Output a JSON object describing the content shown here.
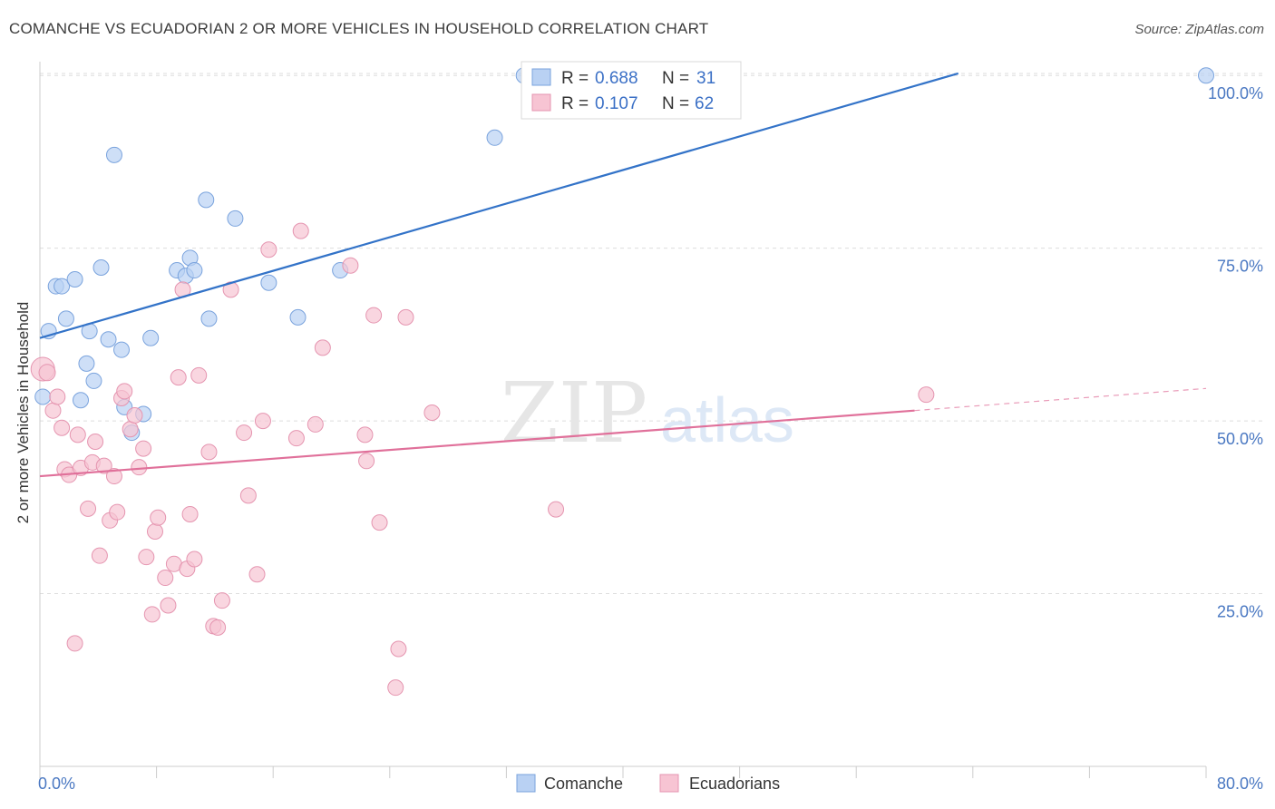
{
  "title": "COMANCHE VS ECUADORIAN 2 OR MORE VEHICLES IN HOUSEHOLD CORRELATION CHART",
  "source": "Source: ZipAtlas.com",
  "watermark": {
    "zip": "ZIP",
    "atlas": "atlas"
  },
  "legend_box": [
    {
      "r_label": "R =",
      "r_value": "0.688",
      "n_label": "N =",
      "n_value": "31",
      "color": "#6699dd"
    },
    {
      "r_label": "R =",
      "r_value": "0.107",
      "n_label": "N =",
      "n_value": "62",
      "color": "#e0779a"
    }
  ],
  "colors": {
    "comanche_fill": "#b9d1f3",
    "comanche_stroke": "#7aa3dd",
    "comanche_line": "#3373c8",
    "ecuador_fill": "#f7c4d3",
    "ecuador_stroke": "#e595b0",
    "ecuador_line": "#e0709a",
    "tick_text": "#4a78c2",
    "grid": "#dddddd"
  },
  "chart_data": {
    "type": "scatter",
    "title": "COMANCHE VS ECUADORIAN 2 OR MORE VEHICLES IN HOUSEHOLD CORRELATION CHART",
    "xlabel": "",
    "ylabel": "2 or more Vehicles in Household",
    "xlim": [
      0,
      80
    ],
    "ylim": [
      0,
      102
    ],
    "x_tick_labels": [
      "0.0%",
      "80.0%"
    ],
    "y_ticks": [
      25,
      50,
      75,
      100
    ],
    "y_tick_labels": [
      "25.0%",
      "50.0%",
      "75.0%",
      "100.0%"
    ],
    "grid": true,
    "legend_position": "bottom-center",
    "series": [
      {
        "name": "Comanche",
        "trend": {
          "x": [
            0,
            63
          ],
          "y": [
            62,
            100.3
          ]
        },
        "points": [
          [
            0.2,
            53.5
          ],
          [
            0.6,
            63
          ],
          [
            1.1,
            69.5
          ],
          [
            1.5,
            69.5
          ],
          [
            1.8,
            64.8
          ],
          [
            2.4,
            70.5
          ],
          [
            2.8,
            53
          ],
          [
            3.2,
            58.3
          ],
          [
            3.4,
            63
          ],
          [
            3.7,
            55.8
          ],
          [
            4.2,
            72.2
          ],
          [
            4.7,
            61.8
          ],
          [
            5.1,
            88.5
          ],
          [
            5.6,
            60.3
          ],
          [
            5.8,
            52
          ],
          [
            6.3,
            48.3
          ],
          [
            7.1,
            51
          ],
          [
            7.6,
            62
          ],
          [
            9.4,
            71.8
          ],
          [
            10.0,
            71
          ],
          [
            10.3,
            73.6
          ],
          [
            10.6,
            71.8
          ],
          [
            11.4,
            82
          ],
          [
            11.6,
            64.8
          ],
          [
            13.4,
            79.3
          ],
          [
            15.7,
            70
          ],
          [
            17.7,
            65
          ],
          [
            20.6,
            71.8
          ],
          [
            31.2,
            91
          ],
          [
            33.2,
            100
          ],
          [
            80.0,
            100
          ]
        ]
      },
      {
        "name": "Ecuadorians",
        "trend": {
          "x": [
            0,
            60
          ],
          "y": [
            42,
            51.5
          ]
        },
        "trend_dashed": {
          "x": [
            60,
            80
          ],
          "y": [
            51.5,
            54.7
          ]
        },
        "points": [
          [
            0.2,
            57.5
          ],
          [
            0.5,
            57
          ],
          [
            0.9,
            51.5
          ],
          [
            1.2,
            53.5
          ],
          [
            1.5,
            49
          ],
          [
            1.7,
            43
          ],
          [
            2.0,
            42.2
          ],
          [
            2.4,
            17.8
          ],
          [
            2.6,
            48
          ],
          [
            2.8,
            43.2
          ],
          [
            3.3,
            37.3
          ],
          [
            3.6,
            44
          ],
          [
            3.8,
            47
          ],
          [
            4.1,
            30.5
          ],
          [
            4.4,
            43.5
          ],
          [
            4.8,
            35.6
          ],
          [
            5.1,
            42
          ],
          [
            5.3,
            36.8
          ],
          [
            5.6,
            53.3
          ],
          [
            5.8,
            54.3
          ],
          [
            6.2,
            48.8
          ],
          [
            6.5,
            50.8
          ],
          [
            6.8,
            43.3
          ],
          [
            7.1,
            46
          ],
          [
            7.3,
            30.3
          ],
          [
            7.7,
            22
          ],
          [
            7.9,
            34
          ],
          [
            8.1,
            36
          ],
          [
            8.6,
            27.3
          ],
          [
            8.8,
            23.3
          ],
          [
            9.2,
            29.3
          ],
          [
            9.5,
            56.3
          ],
          [
            9.8,
            69
          ],
          [
            10.1,
            28.6
          ],
          [
            10.3,
            36.5
          ],
          [
            10.6,
            30
          ],
          [
            10.9,
            56.6
          ],
          [
            11.6,
            45.5
          ],
          [
            11.9,
            20.3
          ],
          [
            12.2,
            20.1
          ],
          [
            12.5,
            24
          ],
          [
            13.1,
            69
          ],
          [
            14.0,
            48.3
          ],
          [
            14.3,
            39.2
          ],
          [
            14.9,
            27.8
          ],
          [
            15.3,
            50
          ],
          [
            15.7,
            74.8
          ],
          [
            17.6,
            47.5
          ],
          [
            17.9,
            77.5
          ],
          [
            18.9,
            49.5
          ],
          [
            19.4,
            60.6
          ],
          [
            21.3,
            72.5
          ],
          [
            22.3,
            48
          ],
          [
            22.4,
            44.2
          ],
          [
            22.9,
            65.3
          ],
          [
            23.3,
            35.3
          ],
          [
            24.4,
            11.4
          ],
          [
            24.6,
            17
          ],
          [
            25.1,
            65
          ],
          [
            26.9,
            51.2
          ],
          [
            35.4,
            37.2
          ],
          [
            60.8,
            53.8
          ]
        ]
      }
    ]
  }
}
